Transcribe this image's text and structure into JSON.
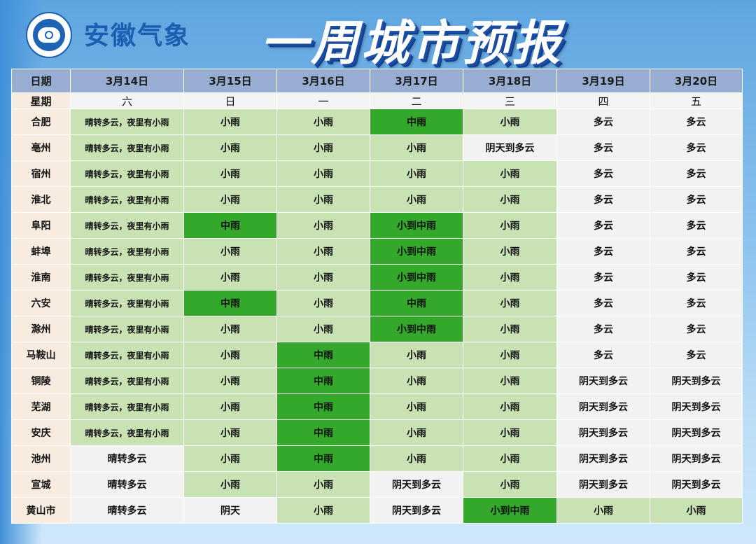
{
  "header": {
    "logo_icon": "meteorological-bureau-logo-icon",
    "brand": "安徽气象",
    "title": "一周城市预报"
  },
  "colors": {
    "none": "#f2f2f2",
    "light_rain": "#c8e2b4",
    "moderate_rain": "#34a82a",
    "header": "#97add1",
    "label": "#f8ebe0"
  },
  "table": {
    "date_label": "日期",
    "weekday_label": "星期",
    "dates": [
      "3月14日",
      "3月15日",
      "3月16日",
      "3月17日",
      "3月18日",
      "3月19日",
      "3月20日"
    ],
    "weekdays": [
      "六",
      "日",
      "一",
      "二",
      "三",
      "四",
      "五"
    ],
    "rows": [
      {
        "city": "合肥",
        "cells": [
          "晴转多云，夜里有小雨",
          "小雨",
          "小雨",
          "中雨",
          "小雨",
          "多云",
          "多云"
        ],
        "levels": [
          "light",
          "light",
          "light",
          "mod",
          "light",
          "none",
          "none"
        ]
      },
      {
        "city": "亳州",
        "cells": [
          "晴转多云，夜里有小雨",
          "小雨",
          "小雨",
          "小雨",
          "阴天到多云",
          "多云",
          "多云"
        ],
        "levels": [
          "light",
          "light",
          "light",
          "light",
          "none",
          "none",
          "none"
        ]
      },
      {
        "city": "宿州",
        "cells": [
          "晴转多云，夜里有小雨",
          "小雨",
          "小雨",
          "小雨",
          "小雨",
          "多云",
          "多云"
        ],
        "levels": [
          "light",
          "light",
          "light",
          "light",
          "light",
          "none",
          "none"
        ]
      },
      {
        "city": "淮北",
        "cells": [
          "晴转多云，夜里有小雨",
          "小雨",
          "小雨",
          "小雨",
          "小雨",
          "多云",
          "多云"
        ],
        "levels": [
          "light",
          "light",
          "light",
          "light",
          "light",
          "none",
          "none"
        ]
      },
      {
        "city": "阜阳",
        "cells": [
          "晴转多云，夜里有小雨",
          "中雨",
          "小雨",
          "小到中雨",
          "小雨",
          "多云",
          "多云"
        ],
        "levels": [
          "light",
          "mod",
          "light",
          "mod",
          "light",
          "none",
          "none"
        ]
      },
      {
        "city": "蚌埠",
        "cells": [
          "晴转多云，夜里有小雨",
          "小雨",
          "小雨",
          "小到中雨",
          "小雨",
          "多云",
          "多云"
        ],
        "levels": [
          "light",
          "light",
          "light",
          "mod",
          "light",
          "none",
          "none"
        ]
      },
      {
        "city": "淮南",
        "cells": [
          "晴转多云，夜里有小雨",
          "小雨",
          "小雨",
          "小到中雨",
          "小雨",
          "多云",
          "多云"
        ],
        "levels": [
          "light",
          "light",
          "light",
          "mod",
          "light",
          "none",
          "none"
        ]
      },
      {
        "city": "六安",
        "cells": [
          "晴转多云，夜里有小雨",
          "中雨",
          "小雨",
          "中雨",
          "小雨",
          "多云",
          "多云"
        ],
        "levels": [
          "light",
          "mod",
          "light",
          "mod",
          "light",
          "none",
          "none"
        ]
      },
      {
        "city": "滁州",
        "cells": [
          "晴转多云，夜里有小雨",
          "小雨",
          "小雨",
          "小到中雨",
          "小雨",
          "多云",
          "多云"
        ],
        "levels": [
          "light",
          "light",
          "light",
          "mod",
          "light",
          "none",
          "none"
        ]
      },
      {
        "city": "马鞍山",
        "cells": [
          "晴转多云，夜里有小雨",
          "小雨",
          "中雨",
          "小雨",
          "小雨",
          "多云",
          "多云"
        ],
        "levels": [
          "light",
          "light",
          "mod",
          "light",
          "light",
          "none",
          "none"
        ]
      },
      {
        "city": "铜陵",
        "cells": [
          "晴转多云，夜里有小雨",
          "小雨",
          "中雨",
          "小雨",
          "小雨",
          "阴天到多云",
          "阴天到多云"
        ],
        "levels": [
          "light",
          "light",
          "mod",
          "light",
          "light",
          "none",
          "none"
        ]
      },
      {
        "city": "芜湖",
        "cells": [
          "晴转多云，夜里有小雨",
          "小雨",
          "中雨",
          "小雨",
          "小雨",
          "阴天到多云",
          "阴天到多云"
        ],
        "levels": [
          "light",
          "light",
          "mod",
          "light",
          "light",
          "none",
          "none"
        ]
      },
      {
        "city": "安庆",
        "cells": [
          "晴转多云，夜里有小雨",
          "小雨",
          "中雨",
          "小雨",
          "小雨",
          "阴天到多云",
          "阴天到多云"
        ],
        "levels": [
          "light",
          "light",
          "mod",
          "light",
          "light",
          "none",
          "none"
        ]
      },
      {
        "city": "池州",
        "cells": [
          "晴转多云",
          "小雨",
          "中雨",
          "小雨",
          "小雨",
          "阴天到多云",
          "阴天到多云"
        ],
        "levels": [
          "none",
          "light",
          "mod",
          "light",
          "light",
          "none",
          "none"
        ]
      },
      {
        "city": "宣城",
        "cells": [
          "晴转多云",
          "小雨",
          "小雨",
          "阴天到多云",
          "小雨",
          "阴天到多云",
          "阴天到多云"
        ],
        "levels": [
          "none",
          "light",
          "light",
          "none",
          "light",
          "none",
          "none"
        ]
      },
      {
        "city": "黄山市",
        "cells": [
          "晴转多云",
          "阴天",
          "小雨",
          "阴天到多云",
          "小到中雨",
          "小雨",
          "小雨"
        ],
        "levels": [
          "none",
          "none",
          "light",
          "none",
          "mod",
          "light",
          "light"
        ]
      }
    ]
  }
}
